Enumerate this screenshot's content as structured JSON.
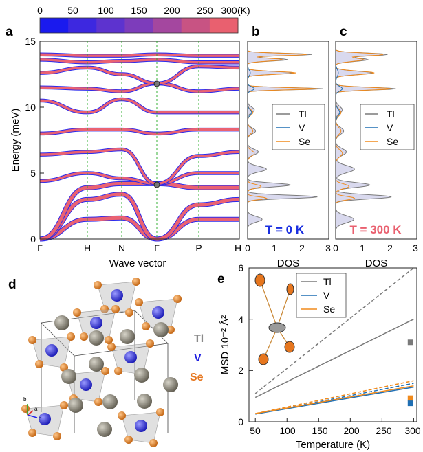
{
  "colorbar": {
    "ticks": [
      "0",
      "50",
      "100",
      "150",
      "200",
      "250",
      "300"
    ],
    "unit": "(K)",
    "colors": [
      "#1a1aee",
      "#3d28e0",
      "#5d33cf",
      "#7d3cbb",
      "#a4479f",
      "#c85383",
      "#e9606f"
    ]
  },
  "panels": {
    "a": {
      "letter": "a",
      "ylabel": "Energy (meV)",
      "xlabel": "Wave vector",
      "yticks": [
        "0",
        "5",
        "10",
        "15"
      ],
      "kpoints": [
        "Γ",
        "H",
        "N",
        "Γ",
        "P",
        "H"
      ]
    },
    "b": {
      "letter": "b",
      "xlabel": "DOS",
      "xticks": [
        "0",
        "1",
        "2",
        "3"
      ],
      "temperature": "T = 0 K",
      "temp_color": "#1a2fe0",
      "legend": [
        "Tl",
        "V",
        "Se"
      ]
    },
    "c": {
      "letter": "c",
      "xlabel": "DOS",
      "xticks": [
        "0",
        "1",
        "2",
        "3"
      ],
      "temperature": "T = 300 K",
      "temp_color": "#e9606f",
      "legend": [
        "Tl",
        "V",
        "Se"
      ]
    },
    "d": {
      "letter": "d",
      "species": [
        "Tl",
        "V",
        "Se"
      ],
      "species_colors": [
        "#8a8a8a",
        "#1e1ee0",
        "#e6761e"
      ],
      "axes": [
        "b",
        "a",
        "c"
      ]
    },
    "e": {
      "letter": "e",
      "ylabel": "MSD 10⁻² Å²",
      "xlabel": "Temperature (K)",
      "yticks": [
        "0",
        "2",
        "4",
        "6"
      ],
      "xticks": [
        "50",
        "100",
        "150",
        "200",
        "250",
        "300"
      ],
      "legend": [
        "Tl",
        "V",
        "Se"
      ]
    }
  },
  "series_colors": {
    "Tl": "#7a7a7a",
    "V": "#1f6fb4",
    "Se": "#f08a1c"
  },
  "chart_data": [
    {
      "type": "line",
      "panel": "a",
      "x": [
        "Γ",
        "H",
        "N",
        "Γ",
        "P",
        "H"
      ],
      "ylabel": "Energy (meV)",
      "xlabel": "Wave vector",
      "ylim": [
        0,
        15
      ],
      "series": [
        {
          "values": [
            0,
            1.5,
            1.6,
            0,
            1.5,
            1.5
          ]
        },
        {
          "values": [
            0,
            3.0,
            3.4,
            0,
            2.6,
            3.0
          ]
        },
        {
          "values": [
            0,
            3.9,
            4.2,
            4.2,
            3.9,
            3.9
          ]
        },
        {
          "values": [
            4.4,
            5.0,
            4.6,
            4.2,
            5.0,
            5.0
          ]
        },
        {
          "values": [
            6.4,
            6.6,
            6.8,
            4.2,
            6.3,
            6.6
          ]
        },
        {
          "values": [
            8.0,
            8.3,
            8.3,
            8.0,
            8.3,
            8.3
          ]
        },
        {
          "values": [
            10.5,
            9.6,
            10.6,
            9.6,
            9.6,
            9.6
          ]
        },
        {
          "values": [
            11.5,
            11.4,
            11.2,
            11.8,
            11.2,
            11.4
          ]
        },
        {
          "values": [
            12.6,
            13.0,
            12.5,
            11.8,
            13.1,
            13.0
          ]
        },
        {
          "values": [
            13.6,
            13.4,
            13.5,
            13.6,
            13.4,
            13.4
          ]
        },
        {
          "values": [
            14.0,
            13.9,
            13.9,
            14.0,
            13.9,
            13.9
          ]
        }
      ]
    },
    {
      "type": "line",
      "panel": "e",
      "x": [
        50,
        300
      ],
      "xlabel": "Temperature (K)",
      "ylabel": "MSD 10⁻² Å²",
      "ylim": [
        0,
        6
      ],
      "xlim": [
        40,
        305
      ],
      "series": [
        {
          "name": "Tl",
          "values": [
            0.95,
            4.0
          ]
        },
        {
          "name": "Tl",
          "values": [
            1.1,
            6.0
          ]
        },
        {
          "name": "V",
          "values": [
            0.3,
            1.35
          ]
        },
        {
          "name": "V",
          "values": [
            0.3,
            1.5
          ]
        },
        {
          "name": "Se",
          "values": [
            0.32,
            1.4
          ]
        },
        {
          "name": "Se",
          "values": [
            0.32,
            1.6
          ]
        }
      ],
      "points": [
        {
          "name": "Tl",
          "x": 295,
          "y": 3.1
        },
        {
          "name": "Se",
          "x": 295,
          "y": 0.92
        },
        {
          "name": "V",
          "x": 295,
          "y": 0.72
        }
      ]
    }
  ]
}
